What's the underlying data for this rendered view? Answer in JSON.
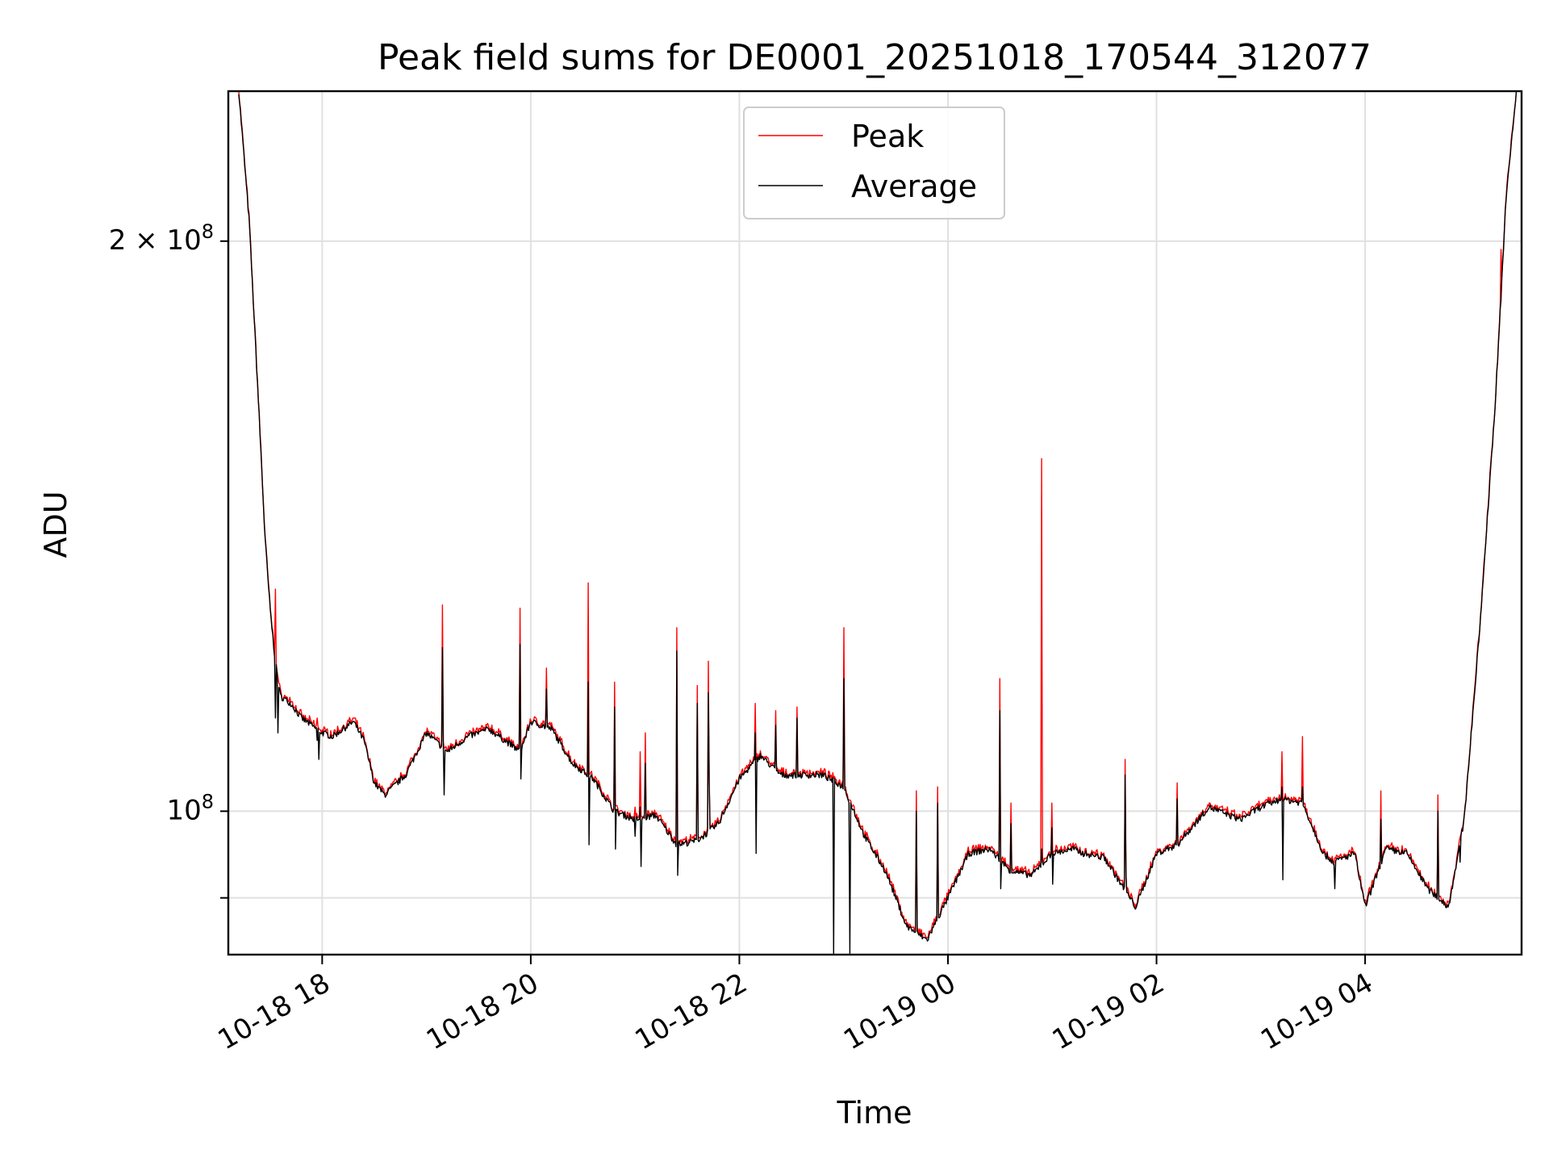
{
  "chart_data": {
    "type": "line",
    "title": "Peak field sums for DE0001_20251018_170544_312077",
    "xlabel": "Time",
    "ylabel": "ADU",
    "yscale": "log",
    "ylim": [
      84000000,
      240000000
    ],
    "xlim_hours": [
      -0.9,
      11.5
    ],
    "grid": true,
    "legend": {
      "position": "top-center",
      "entries": [
        "Peak",
        "Average"
      ]
    },
    "x_ticks": [
      {
        "hours": 0,
        "label": "10-18 18"
      },
      {
        "hours": 2,
        "label": "10-18 20"
      },
      {
        "hours": 4,
        "label": "10-18 22"
      },
      {
        "hours": 6,
        "label": "10-19 00"
      },
      {
        "hours": 8,
        "label": "10-19 02"
      },
      {
        "hours": 10,
        "label": "10-19 04"
      }
    ],
    "y_ticks": [
      {
        "value": 200000000,
        "base": "2",
        "exponent": "8",
        "label": "2 × 10^8"
      },
      {
        "value": 100000000,
        "base": "10",
        "exponent": "8",
        "label": "10^8"
      },
      {
        "value": 90000000,
        "base": "",
        "exponent": "",
        "label": ""
      }
    ],
    "series": [
      {
        "name": "Peak",
        "color": "#ff0000"
      },
      {
        "name": "Average",
        "color": "#000000"
      }
    ],
    "baseline": {
      "x": [
        -0.8,
        -0.7,
        -0.6,
        -0.55,
        -0.5,
        -0.45,
        -0.4,
        -0.35,
        -0.3,
        -0.2,
        -0.1,
        0.0,
        0.1,
        0.2,
        0.3,
        0.4,
        0.5,
        0.6,
        0.8,
        1.0,
        1.2,
        1.4,
        1.6,
        1.8,
        1.9,
        2.0,
        2.2,
        2.4,
        2.6,
        2.8,
        3.0,
        3.2,
        3.4,
        3.6,
        3.8,
        4.0,
        4.2,
        4.4,
        4.6,
        4.8,
        5.0,
        5.2,
        5.4,
        5.5,
        5.6,
        5.8,
        6.0,
        6.2,
        6.4,
        6.6,
        6.8,
        7.0,
        7.2,
        7.3,
        7.5,
        7.8,
        8.0,
        8.2,
        8.5,
        8.8,
        9.0,
        9.2,
        9.4,
        9.6,
        9.7,
        9.9,
        10.0,
        10.2,
        10.4,
        10.6,
        10.8,
        10.95,
        11.1,
        11.25,
        11.35,
        11.45
      ],
      "y": [
        240000000,
        205000000,
        160000000,
        140000000,
        128000000,
        120000000,
        115000000,
        114500000,
        114000000,
        112000000,
        111000000,
        110000000,
        109500000,
        110500000,
        111500000,
        109000000,
        103500000,
        102000000,
        104500000,
        110000000,
        107500000,
        109500000,
        110500000,
        108500000,
        107500000,
        111500000,
        110500000,
        106000000,
        104000000,
        100000000,
        99000000,
        99500000,
        96000000,
        96500000,
        98500000,
        104000000,
        107000000,
        104500000,
        104500000,
        104500000,
        103000000,
        97000000,
        93000000,
        90000000,
        87000000,
        85500000,
        90000000,
        95000000,
        95500000,
        93000000,
        92500000,
        95000000,
        95500000,
        95000000,
        94500000,
        89000000,
        95000000,
        96000000,
        100500000,
        99000000,
        100500000,
        101500000,
        101000000,
        95000000,
        94000000,
        95000000,
        89000000,
        95500000,
        95000000,
        91000000,
        89000000,
        99000000,
        125000000,
        165000000,
        210000000,
        240000000
      ]
    },
    "peak_spikes": [
      [
        -0.45,
        131000000,
        112000000
      ],
      [
        -0.05,
        112000000,
        109000000
      ],
      [
        1.15,
        128500000,
        122000000
      ],
      [
        1.9,
        128000000,
        122500000
      ],
      [
        2.15,
        119000000,
        116000000
      ],
      [
        2.55,
        132000000,
        117000000
      ],
      [
        2.8,
        117000000,
        113500000
      ],
      [
        3.0,
        100500000,
        97000000
      ],
      [
        3.05,
        107500000,
        100500000
      ],
      [
        3.1,
        110000000,
        106000000
      ],
      [
        3.4,
        125000000,
        121500000
      ],
      [
        3.6,
        116500000,
        114000000
      ],
      [
        3.7,
        120000000,
        115500000
      ],
      [
        4.15,
        114000000,
        110000000
      ],
      [
        4.35,
        113000000,
        111000000
      ],
      [
        4.55,
        113500000,
        112000000
      ],
      [
        5.0,
        125000000,
        117500000
      ],
      [
        5.7,
        102500000,
        100000000
      ],
      [
        5.9,
        103000000,
        101000000
      ],
      [
        6.5,
        117500000,
        113000000
      ],
      [
        6.6,
        101000000,
        98500000
      ],
      [
        6.9,
        153500000,
        95500000
      ],
      [
        7.0,
        101000000,
        98000000
      ],
      [
        7.7,
        106500000,
        104500000
      ],
      [
        8.2,
        103500000,
        101500000
      ],
      [
        9.2,
        107500000,
        103000000
      ],
      [
        9.4,
        109500000,
        103000000
      ],
      [
        10.15,
        102500000,
        99000000
      ],
      [
        10.7,
        102000000,
        100000000
      ],
      [
        11.3,
        198000000,
        186000000
      ]
    ],
    "dips": [
      [
        -0.43,
        110000000
      ],
      [
        -0.04,
        106500000
      ],
      [
        1.16,
        102000000
      ],
      [
        1.9,
        104000000
      ],
      [
        2.55,
        96000000
      ],
      [
        2.8,
        95500000
      ],
      [
        3.05,
        93500000
      ],
      [
        3.4,
        92500000
      ],
      [
        3.7,
        103500000
      ],
      [
        4.15,
        95000000
      ],
      [
        4.9,
        84000000
      ],
      [
        5.05,
        84000000
      ],
      [
        6.5,
        91000000
      ],
      [
        7.0,
        91500000
      ],
      [
        7.7,
        92500000
      ],
      [
        9.2,
        92000000
      ],
      [
        9.7,
        91000000
      ],
      [
        10.9,
        94000000
      ]
    ]
  }
}
